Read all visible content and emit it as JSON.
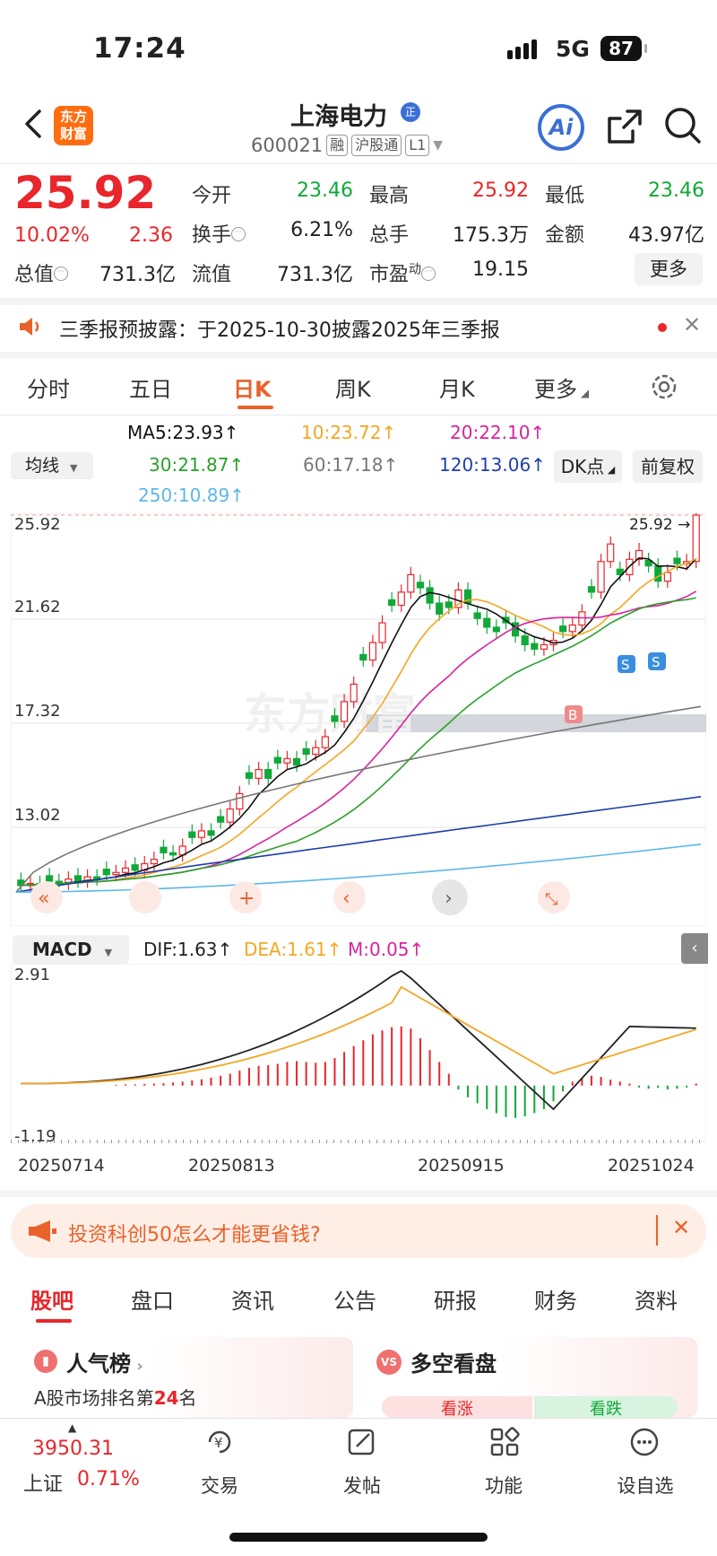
{
  "status": {
    "time": "17:24",
    "network": "5G",
    "battery": "87"
  },
  "header": {
    "logo": "东方财富",
    "logo_line1": "东方",
    "logo_line2": "财富",
    "name": "上海电力",
    "badge": "正",
    "code": "600021",
    "tags": [
      "融",
      "沪股通",
      "L1"
    ],
    "ai": "Ai"
  },
  "quote": {
    "price": "25.92",
    "pct": "10.02%",
    "change": "2.36",
    "open_label": "今开",
    "open": "23.46",
    "high_label": "最高",
    "high": "25.92",
    "low_label": "最低",
    "low": "23.46",
    "turnover_label": "换手",
    "turnover": "6.21%",
    "volume_label": "总手",
    "volume": "175.3万",
    "amount_label": "金额",
    "amount": "43.97亿",
    "mcap_label": "总值",
    "mcap": "731.3亿",
    "float_label": "流值",
    "float": "731.3亿",
    "pe_label": "市盈",
    "pe_sup": "动",
    "pe": "19.15",
    "more": "更多"
  },
  "notice": {
    "text": "三季报预披露：于2025-10-30披露2025年三季报"
  },
  "period_tabs": [
    "分时",
    "五日",
    "日K",
    "周K",
    "月K",
    "更多"
  ],
  "ma": {
    "selector": "均线",
    "ma5": "MA5:23.93",
    "ma10": "10:23.72",
    "ma20": "20:22.10",
    "ma30": "30:21.87",
    "ma60": "60:17.18",
    "ma120": "120:13.06",
    "ma250": "250:10.89",
    "dk": "DK点",
    "fq": "前复权"
  },
  "chart_labels": {
    "y1": "25.92",
    "y2": "21.62",
    "y3": "17.32",
    "y4": "13.02",
    "last": "25.92",
    "b": "B",
    "s": "S",
    "watermark": "东方财富"
  },
  "macd": {
    "selector": "MACD",
    "dif": "DIF:1.63",
    "dea": "DEA:1.61",
    "m": "M:0.05",
    "top": "2.91",
    "bottom": "-1.19"
  },
  "dates": [
    "20250714",
    "20250813",
    "20250915",
    "20251024"
  ],
  "ad": {
    "text": "投资科创50怎么才能更省钱?"
  },
  "bottom_tabs": [
    "股吧",
    "盘口",
    "资讯",
    "公告",
    "研报",
    "财务",
    "资料"
  ],
  "cards": {
    "left_title": "人气榜",
    "left_sub_pre": "A股市场排名第",
    "left_rank": "24",
    "left_sub_post": "名",
    "right_title": "多空看盘",
    "bull": "看涨",
    "bear": "看跌"
  },
  "index": {
    "value": "3950.31",
    "name": "上证",
    "pct": "0.71%"
  },
  "nav": [
    "交易",
    "发帖",
    "功能",
    "设自选"
  ],
  "colors": {
    "up": "#e8262b",
    "down": "#11a83a",
    "accent": "#e8622b",
    "ma5": "#111111",
    "ma10": "#f5a623",
    "ma20": "#d6249f",
    "ma30": "#2aa02a",
    "ma60": "#777777",
    "ma120": "#1f3fa8",
    "ma250": "#5bb8e8"
  },
  "chart_data": {
    "type": "candlestick",
    "price_axis": [
      25.92,
      21.62,
      17.32,
      13.02
    ],
    "macd_axis": [
      2.91,
      -1.19
    ],
    "x_ticks": [
      "20250714",
      "20250813",
      "20250915",
      "20251024"
    ],
    "last_close": 25.92
  }
}
